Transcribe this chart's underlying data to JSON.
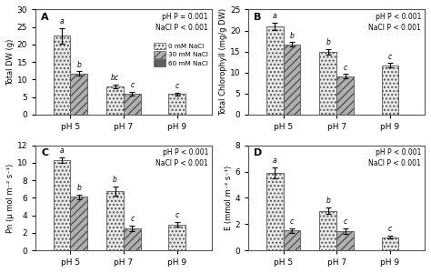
{
  "panels": [
    {
      "label": "A",
      "ylabel": "Total DW (g)",
      "ylim": [
        0,
        30
      ],
      "yticks": [
        0,
        5,
        10,
        15,
        20,
        25,
        30
      ],
      "stat_text": "pH P = 0.001\nNaCl P < 0.001",
      "show_legend": true,
      "groups": [
        "pH 5",
        "pH 7",
        "pH 9"
      ],
      "bars": [
        {
          "nacl": "0 mM NaCl",
          "values": [
            22.5,
            8.0,
            5.8
          ],
          "errors": [
            2.2,
            0.5,
            0.4
          ]
        },
        {
          "nacl": "30 mM NaCl",
          "values": [
            11.7,
            6.0,
            null
          ],
          "errors": [
            0.6,
            0.5,
            null
          ]
        },
        {
          "nacl": "60 mM NaCl",
          "values": [
            null,
            null,
            null
          ],
          "errors": [
            null,
            null,
            null
          ]
        }
      ],
      "sig_labels": [
        [
          "a",
          "bc",
          "c"
        ],
        [
          "b",
          "c",
          null
        ],
        [
          null,
          null,
          null
        ]
      ]
    },
    {
      "label": "B",
      "ylabel": "Total Chlorophyll (mg/g DW)",
      "ylim": [
        0,
        25
      ],
      "yticks": [
        0,
        5,
        10,
        15,
        20,
        25
      ],
      "stat_text": "pH P < 0.001\nNaCl P < 0.001",
      "show_legend": false,
      "groups": [
        "pH 5",
        "pH 7",
        "pH 9"
      ],
      "bars": [
        {
          "nacl": "0 mM NaCl",
          "values": [
            21.0,
            14.9,
            11.7
          ],
          "errors": [
            0.8,
            0.6,
            0.5
          ]
        },
        {
          "nacl": "30 mM NaCl",
          "values": [
            16.7,
            9.1,
            null
          ],
          "errors": [
            0.5,
            0.5,
            null
          ]
        },
        {
          "nacl": "60 mM NaCl",
          "values": [
            null,
            null,
            null
          ],
          "errors": [
            null,
            null,
            null
          ]
        }
      ],
      "sig_labels": [
        [
          "a",
          "b",
          "c"
        ],
        [
          "b",
          "c",
          null
        ],
        [
          null,
          null,
          null
        ]
      ]
    },
    {
      "label": "C",
      "ylabel": "Pn (μ mol m⁻² s⁻¹)",
      "ylim": [
        0,
        12
      ],
      "yticks": [
        0,
        2,
        4,
        6,
        8,
        10,
        12
      ],
      "stat_text": "pH P < 0.001\nNaCl P < 0.001",
      "show_legend": false,
      "groups": [
        "pH 5",
        "pH 7",
        "pH 9"
      ],
      "bars": [
        {
          "nacl": "0 mM NaCl",
          "values": [
            10.3,
            6.8,
            2.95
          ],
          "errors": [
            0.35,
            0.5,
            0.25
          ]
        },
        {
          "nacl": "30 mM NaCl",
          "values": [
            6.1,
            2.5,
            null
          ],
          "errors": [
            0.3,
            0.3,
            null
          ]
        },
        {
          "nacl": "60 mM NaCl",
          "values": [
            null,
            null,
            null
          ],
          "errors": [
            null,
            null,
            null
          ]
        }
      ],
      "sig_labels": [
        [
          "a",
          "b",
          "c"
        ],
        [
          "b",
          "c",
          null
        ],
        [
          null,
          null,
          null
        ]
      ]
    },
    {
      "label": "D",
      "ylabel": "E (mmol m⁻² s⁻¹)",
      "ylim": [
        0,
        8
      ],
      "yticks": [
        0,
        2,
        4,
        6,
        8
      ],
      "stat_text": "pH P < 0.001\nNaCl P < 0.001",
      "show_legend": false,
      "groups": [
        "pH 5",
        "pH 7",
        "pH 9"
      ],
      "bars": [
        {
          "nacl": "0 mM NaCl",
          "values": [
            5.9,
            3.0,
            1.0
          ],
          "errors": [
            0.45,
            0.25,
            0.1
          ]
        },
        {
          "nacl": "30 mM NaCl",
          "values": [
            1.5,
            1.45,
            null
          ],
          "errors": [
            0.15,
            0.2,
            null
          ]
        },
        {
          "nacl": "60 mM NaCl",
          "values": [
            null,
            null,
            null
          ],
          "errors": [
            null,
            null,
            null
          ]
        }
      ],
      "sig_labels": [
        [
          "a",
          "b",
          "c"
        ],
        [
          "c",
          "c",
          null
        ],
        [
          null,
          null,
          null
        ]
      ]
    }
  ],
  "hatch_patterns": [
    "....",
    "////",
    "\\\\"
  ],
  "bar_facecolors": [
    "#e8e8e8",
    "#b0b0b0",
    "#606060"
  ],
  "bar_edge_color": "#555555",
  "legend_labels": [
    "0 mM NaCl",
    "30 mM NaCl",
    "60 mM NaCl"
  ],
  "bar_width": 0.32,
  "figure_bgcolor": "#ffffff"
}
